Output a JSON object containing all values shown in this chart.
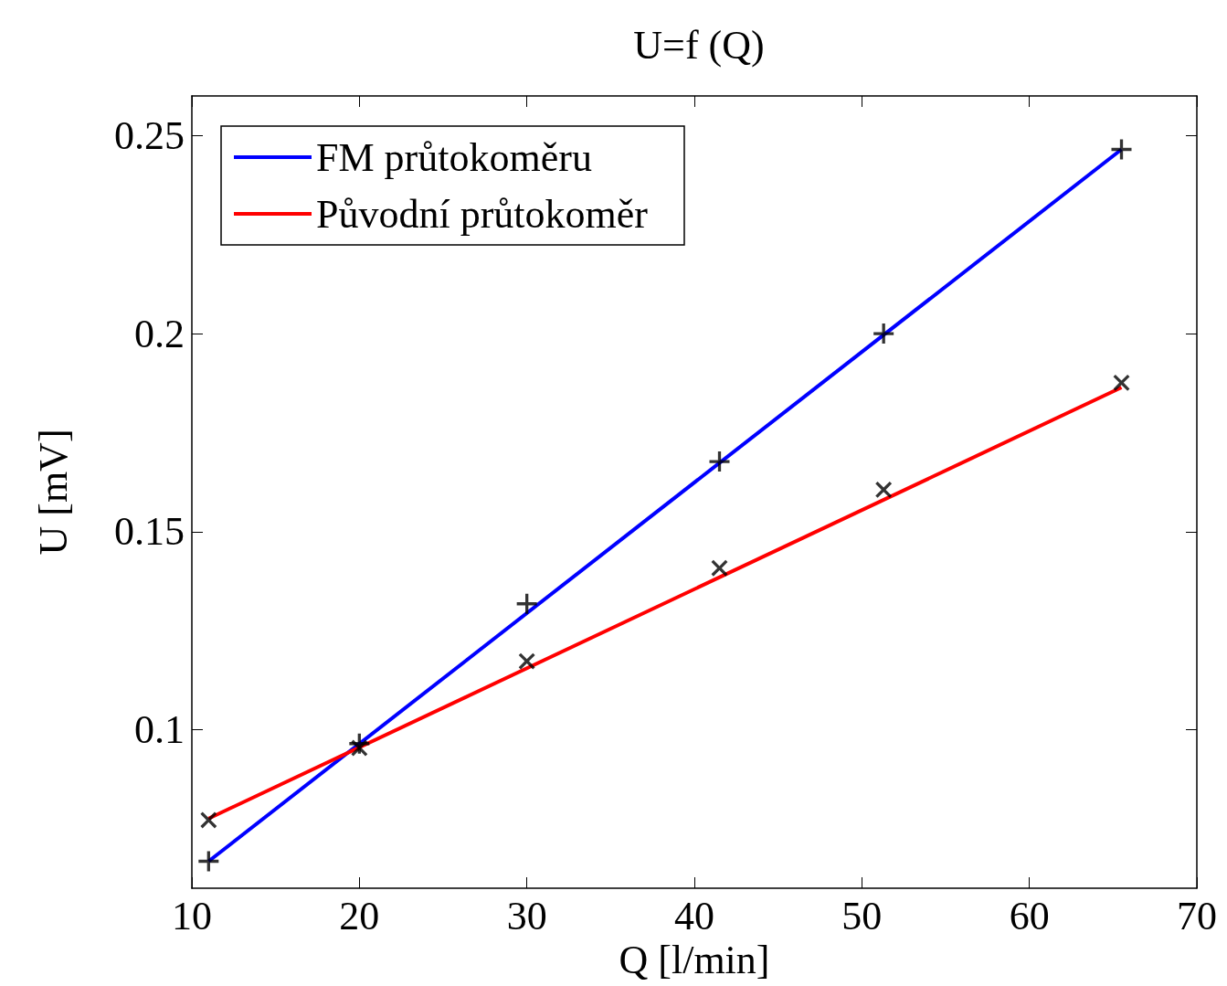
{
  "chart_data": {
    "type": "line",
    "title": "U=f (Q)",
    "xlabel": "Q [l/min]",
    "ylabel": "U [mV]",
    "xlim": [
      10,
      70
    ],
    "xticks": [
      10,
      20,
      30,
      40,
      50,
      60,
      70
    ],
    "ylim": [
      0.06,
      0.26
    ],
    "yticks": [
      0.1,
      0.15,
      0.2,
      0.25
    ],
    "grid": false,
    "legend": "top left",
    "series": [
      {
        "name": "FM průtokoměru",
        "color": "#0000ff",
        "marker": "none",
        "x": [
          11,
          65.5
        ],
        "values": [
          0.0668,
          0.2465
        ]
      },
      {
        "name": "Původní průtokoměr",
        "color": "#ff0000",
        "marker": "none",
        "x": [
          11,
          65.5
        ],
        "values": [
          0.0776,
          0.1864
        ]
      },
      {
        "color": "#000000",
        "type": "scatter",
        "marker": "cross",
        "x": [
          11,
          20,
          30,
          41.5,
          51.3,
          65.5
        ],
        "values": [
          0.0668,
          0.0965,
          0.1318,
          0.1677,
          0.2,
          0.2465
        ]
      },
      {
        "color": "#000000",
        "type": "scatter",
        "marker": "cross",
        "x": [
          11,
          20,
          30,
          41.5,
          51.3,
          65.5
        ],
        "values": [
          0.0772,
          0.0954,
          0.1173,
          0.1408,
          0.1606,
          0.1876
        ]
      }
    ]
  }
}
